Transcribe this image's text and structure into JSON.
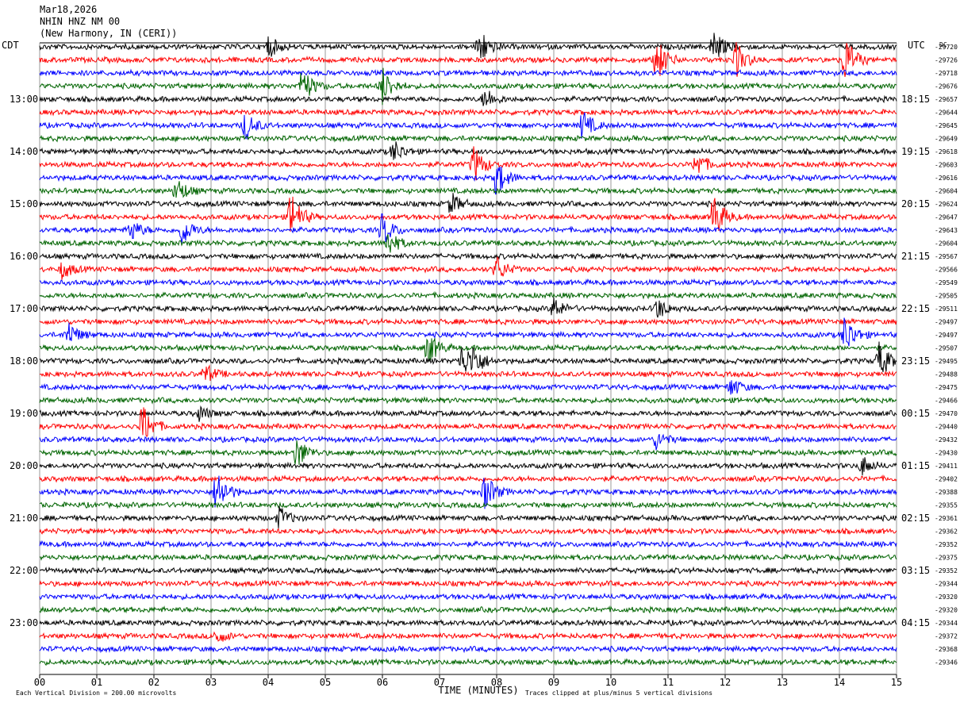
{
  "header": {
    "date": "Mar18,2026",
    "station": "NHIN HNZ NM 00",
    "location": "(New Harmony, IN (CERI))",
    "left_tz": "CDT",
    "right_tz": "UTC",
    "dc_label": "DC"
  },
  "colors": {
    "trace": [
      "#000000",
      "#ff0000",
      "#0000ff",
      "#006400"
    ],
    "grid": "#808080"
  },
  "chart_data": {
    "type": "line",
    "title": "",
    "xlabel": "TIME (MINUTES)",
    "ylabel": "",
    "xlim": [
      0,
      15
    ],
    "x_ticks": [
      "00",
      "01",
      "02",
      "03",
      "04",
      "05",
      "06",
      "07",
      "08",
      "09",
      "10",
      "11",
      "12",
      "13",
      "14",
      "15"
    ],
    "left_hour_labels": [
      "13:00",
      "14:00",
      "15:00",
      "16:00",
      "17:00",
      "18:00",
      "19:00",
      "20:00",
      "21:00",
      "22:00",
      "23:00"
    ],
    "right_hour_labels": [
      "18:15",
      "19:15",
      "20:15",
      "21:15",
      "22:15",
      "23:15",
      "00:15",
      "01:15",
      "02:15",
      "03:15",
      "04:15"
    ],
    "dc_offsets": [
      "-29720",
      "-29726",
      "-29718",
      "-29676",
      "-29657",
      "-29644",
      "-29645",
      "-29649",
      "-29618",
      "-29603",
      "-29616",
      "-29604",
      "-29624",
      "-29647",
      "-29643",
      "-29604",
      "-29567",
      "-29566",
      "-29549",
      "-29505",
      "-29511",
      "-29497",
      "-29497",
      "-29507",
      "-29495",
      "-29488",
      "-29475",
      "-29466",
      "-29470",
      "-29440",
      "-29432",
      "-29430",
      "-29411",
      "-29402",
      "-29388",
      "-29355",
      "-29361",
      "-29362",
      "-29352",
      "-29375",
      "-29352",
      "-29344",
      "-29320",
      "-29320",
      "-29344",
      "-29372",
      "-29368",
      "-29346"
    ],
    "trace_count": 48,
    "events": [
      {
        "trace": 0,
        "minute": 7.7,
        "amp": 1.0
      },
      {
        "trace": 0,
        "minute": 11.8,
        "amp": 0.9
      },
      {
        "trace": 0,
        "minute": 4.0,
        "amp": 0.6
      },
      {
        "trace": 1,
        "minute": 10.8,
        "amp": 1.2
      },
      {
        "trace": 1,
        "minute": 12.2,
        "amp": 0.9
      },
      {
        "trace": 1,
        "minute": 14.1,
        "amp": 1.3
      },
      {
        "trace": 3,
        "minute": 4.6,
        "amp": 1.0
      },
      {
        "trace": 3,
        "minute": 6.0,
        "amp": 1.0
      },
      {
        "trace": 4,
        "minute": 7.8,
        "amp": 0.6
      },
      {
        "trace": 6,
        "minute": 3.6,
        "amp": 0.8
      },
      {
        "trace": 6,
        "minute": 9.5,
        "amp": 0.8
      },
      {
        "trace": 8,
        "minute": 6.2,
        "amp": 0.6
      },
      {
        "trace": 9,
        "minute": 7.6,
        "amp": 1.0
      },
      {
        "trace": 9,
        "minute": 11.5,
        "amp": 0.7
      },
      {
        "trace": 10,
        "minute": 8.0,
        "amp": 1.0
      },
      {
        "trace": 11,
        "minute": 2.4,
        "amp": 0.7
      },
      {
        "trace": 12,
        "minute": 7.2,
        "amp": 0.6
      },
      {
        "trace": 13,
        "minute": 4.4,
        "amp": 1.4
      },
      {
        "trace": 13,
        "minute": 11.8,
        "amp": 1.3
      },
      {
        "trace": 14,
        "minute": 1.6,
        "amp": 0.6
      },
      {
        "trace": 14,
        "minute": 2.5,
        "amp": 0.8
      },
      {
        "trace": 14,
        "minute": 6.0,
        "amp": 0.9
      },
      {
        "trace": 15,
        "minute": 6.1,
        "amp": 0.7
      },
      {
        "trace": 17,
        "minute": 8.0,
        "amp": 0.7
      },
      {
        "trace": 17,
        "minute": 0.4,
        "amp": 0.5
      },
      {
        "trace": 20,
        "minute": 9.0,
        "amp": 0.6
      },
      {
        "trace": 20,
        "minute": 10.8,
        "amp": 0.6
      },
      {
        "trace": 22,
        "minute": 0.5,
        "amp": 0.7
      },
      {
        "trace": 22,
        "minute": 14.1,
        "amp": 1.1
      },
      {
        "trace": 23,
        "minute": 6.8,
        "amp": 0.9
      },
      {
        "trace": 24,
        "minute": 7.4,
        "amp": 0.9
      },
      {
        "trace": 24,
        "minute": 7.6,
        "amp": 0.7
      },
      {
        "trace": 24,
        "minute": 14.7,
        "amp": 1.0
      },
      {
        "trace": 25,
        "minute": 2.9,
        "amp": 0.5
      },
      {
        "trace": 26,
        "minute": 12.1,
        "amp": 0.5
      },
      {
        "trace": 28,
        "minute": 2.8,
        "amp": 0.4
      },
      {
        "trace": 29,
        "minute": 1.8,
        "amp": 1.2
      },
      {
        "trace": 30,
        "minute": 10.8,
        "amp": 0.5
      },
      {
        "trace": 31,
        "minute": 4.5,
        "amp": 0.9
      },
      {
        "trace": 32,
        "minute": 14.4,
        "amp": 0.5
      },
      {
        "trace": 34,
        "minute": 3.1,
        "amp": 1.3
      },
      {
        "trace": 34,
        "minute": 7.8,
        "amp": 1.0
      },
      {
        "trace": 36,
        "minute": 4.2,
        "amp": 0.6
      },
      {
        "trace": 45,
        "minute": 3.1,
        "amp": 0.4
      }
    ]
  },
  "footer": {
    "left_note": "Each Vertical Division =  200.00 microvolts",
    "right_note": "Traces clipped at plus/minus 5 vertical divisions"
  }
}
